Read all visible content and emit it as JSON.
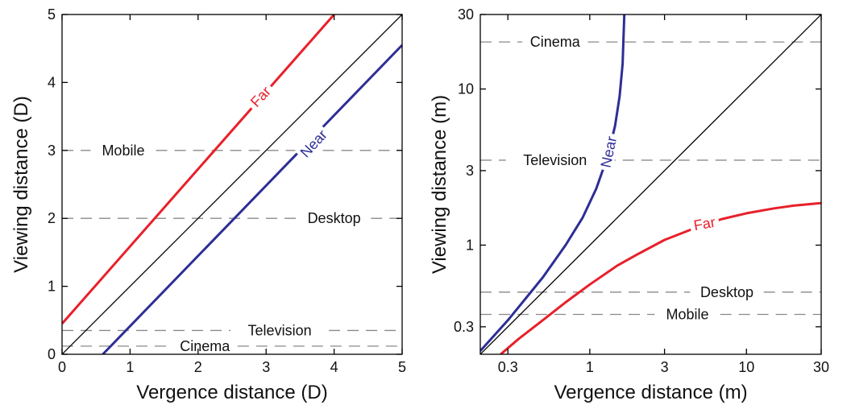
{
  "chart_data": [
    {
      "type": "line",
      "xlabel": "Vergence distance (D)",
      "ylabel": "Viewing distance (D)",
      "xlim": [
        0,
        5
      ],
      "ylim": [
        0,
        5
      ],
      "xticks": [
        0,
        1,
        2,
        3,
        4,
        5
      ],
      "yticks": [
        0,
        1,
        2,
        3,
        4,
        5
      ],
      "grid": false,
      "colors": {
        "far": "#e8202a",
        "near": "#2e2e96",
        "identity": "#000000",
        "reference": "#8a8a8a"
      },
      "series": [
        {
          "name": "Far",
          "x": [
            0,
            4.0
          ],
          "y": [
            0.45,
            5.0
          ]
        },
        {
          "name": "Near",
          "x": [
            0.6,
            5.0
          ],
          "y": [
            0,
            4.55
          ]
        },
        {
          "x": [
            0,
            5
          ],
          "y": [
            0,
            5
          ]
        }
      ],
      "reference_lines": [
        {
          "name": "Mobile",
          "y": 3.0,
          "label_x": 0.9
        },
        {
          "name": "Desktop",
          "y": 2.0,
          "label_x": 4.0
        },
        {
          "name": "Television",
          "y": 0.35,
          "label_x": 3.2
        },
        {
          "name": "Cinema",
          "y": 0.12,
          "label_x": 2.1
        }
      ]
    },
    {
      "type": "line",
      "xlabel": "Vergence distance (m)",
      "ylabel": "Viewing distance (m)",
      "xscale": "log",
      "yscale": "log",
      "xlim": [
        0.2,
        30
      ],
      "ylim": [
        0.2,
        30
      ],
      "xticks": [
        0.3,
        1,
        3,
        10,
        30
      ],
      "xtick_labels": [
        "0.3",
        "1",
        "3",
        "10",
        "30"
      ],
      "yticks": [
        0.3,
        1,
        3,
        10,
        30
      ],
      "ytick_labels": [
        "0.3",
        "1",
        "3",
        "10",
        "30"
      ],
      "grid": false,
      "colors": {
        "far": "#e8202a",
        "near": "#2e2e96",
        "identity": "#000000",
        "reference": "#8a8a8a"
      },
      "series": [
        {
          "name": "Far",
          "x": [
            0.27,
            0.35,
            0.5,
            0.7,
            1,
            1.5,
            2,
            3,
            5,
            7,
            10,
            15,
            20,
            30
          ],
          "y": [
            0.2,
            0.25,
            0.33,
            0.43,
            0.56,
            0.74,
            0.87,
            1.08,
            1.32,
            1.47,
            1.6,
            1.72,
            1.79,
            1.86
          ]
        },
        {
          "name": "Near",
          "x": [
            0.2,
            0.3,
            0.4,
            0.5,
            0.7,
            0.9,
            1.1,
            1.3,
            1.45,
            1.55,
            1.62,
            1.66
          ],
          "y": [
            0.21,
            0.33,
            0.47,
            0.62,
            1.0,
            1.5,
            2.3,
            3.7,
            5.8,
            9.0,
            14.5,
            30
          ]
        },
        {
          "x": [
            0.2,
            30
          ],
          "y": [
            0.2,
            30
          ]
        }
      ],
      "reference_lines": [
        {
          "name": "Cinema",
          "y": 20,
          "label_x": 0.6
        },
        {
          "name": "Television",
          "y": 3.5,
          "label_x": 0.6
        },
        {
          "name": "Desktop",
          "y": 0.5,
          "label_x": 7.5
        },
        {
          "name": "Mobile",
          "y": 0.36,
          "label_x": 4.2
        }
      ]
    }
  ]
}
